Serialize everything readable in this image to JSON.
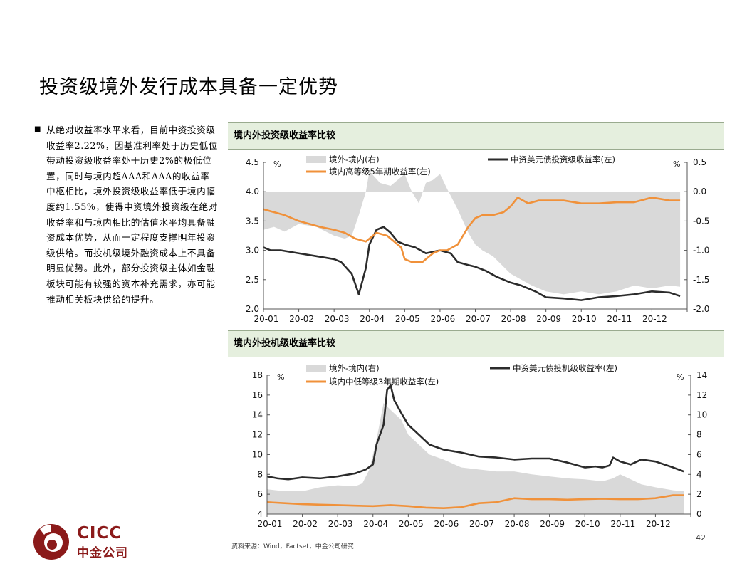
{
  "page": {
    "title": "投资级境外发行成本具备一定优势",
    "bullet": "从绝对收益率水平来看，目前中资投资级收益率2.22%，因基准利率处于历史低位带动投资级收益率处于历史2%的极低位置，同时与境内超AAA和AAA的收益率中枢相比，境外投资级收益率低于境内幅度约1.55%，使得中资境外投资级在绝对收益率和与境内相比的估值水平均具备融资成本优势，从而一定程度支撑明年投资级供给。而投机级境外融资成本上不具备明显优势。此外，部分投资级主体如金融板块可能有较强的资本补充需求，亦可能推动相关板块供给的提升。",
    "source": "资料来源：Wind，Factset，中金公司研究",
    "page_number": "42",
    "logo_en": "CICC",
    "logo_cn": "中金公司"
  },
  "colors": {
    "black": "#2b2b2b",
    "orange": "#f0913a",
    "gray_fill": "#d9d9d9",
    "brand": "#8b1a1a",
    "header_bg": "#e5efde"
  },
  "chart_data": [
    {
      "type": "line",
      "title": "境内外投资级收益率比较",
      "x_ticks": [
        "20-01",
        "20-02",
        "20-03",
        "20-04",
        "20-05",
        "20-06",
        "20-07",
        "20-08",
        "20-09",
        "20-10",
        "20-11",
        "20-12"
      ],
      "left_unit": "%",
      "right_unit": "%",
      "ylim_left": [
        2.0,
        4.5
      ],
      "ylim_right": [
        -2.0,
        0.5
      ],
      "yticks_left": [
        "2.0",
        "2.5",
        "3.0",
        "3.5",
        "4.0",
        "4.5"
      ],
      "yticks_right": [
        "-2.0",
        "-1.5",
        "-1.0",
        "-0.5",
        "0.0",
        "0.5"
      ],
      "legend_position": "top",
      "series": [
        {
          "name": "境外-境内(右)",
          "kind": "area",
          "axis": "right",
          "color": "#d9d9d9",
          "x": [
            0,
            0.3,
            0.6,
            1,
            1.5,
            2,
            2.3,
            2.5,
            2.7,
            2.9,
            3.0,
            3.3,
            3.6,
            3.8,
            4.0,
            4.2,
            4.4,
            4.6,
            4.8,
            5.0,
            5.2,
            5.5,
            5.8,
            6.0,
            6.2,
            6.5,
            7.0,
            7.3,
            7.6,
            8.0,
            8.5,
            9.0,
            9.5,
            10,
            10.5,
            11,
            11.5,
            11.8
          ],
          "values": [
            -0.65,
            -0.6,
            -0.68,
            -0.55,
            -0.6,
            -0.75,
            -0.8,
            -0.75,
            -0.4,
            0.0,
            0.35,
            0.15,
            0.1,
            0.2,
            0.3,
            0.0,
            -0.2,
            0.15,
            0.2,
            0.3,
            0.05,
            -0.3,
            -0.7,
            -0.9,
            -1.0,
            -1.1,
            -1.4,
            -1.5,
            -1.6,
            -1.7,
            -1.75,
            -1.7,
            -1.75,
            -1.7,
            -1.6,
            -1.65,
            -1.6,
            -1.62
          ]
        },
        {
          "name": "中资美元债投资级收益率(左)",
          "kind": "line",
          "axis": "left",
          "color": "#2b2b2b",
          "x": [
            0,
            0.2,
            0.5,
            1,
            1.5,
            2,
            2.2,
            2.5,
            2.7,
            2.9,
            3.0,
            3.2,
            3.4,
            3.6,
            3.8,
            4.0,
            4.3,
            4.6,
            5.0,
            5.3,
            5.5,
            5.8,
            6.0,
            6.3,
            6.6,
            7.0,
            7.3,
            7.7,
            8.0,
            8.5,
            9.0,
            9.5,
            10.0,
            10.5,
            11.0,
            11.5,
            11.8
          ],
          "values": [
            3.05,
            3.0,
            3.0,
            2.95,
            2.9,
            2.85,
            2.8,
            2.6,
            2.25,
            2.7,
            3.1,
            3.35,
            3.4,
            3.3,
            3.15,
            3.1,
            3.05,
            2.95,
            3.0,
            2.95,
            2.8,
            2.75,
            2.72,
            2.65,
            2.55,
            2.45,
            2.4,
            2.3,
            2.2,
            2.18,
            2.15,
            2.2,
            2.22,
            2.25,
            2.3,
            2.28,
            2.22
          ]
        },
        {
          "name": "境内高等级5年期收益率(左)",
          "kind": "line",
          "axis": "left",
          "color": "#f0913a",
          "x": [
            0,
            0.3,
            0.6,
            1,
            1.3,
            1.6,
            2.0,
            2.3,
            2.6,
            2.9,
            3.2,
            3.5,
            3.7,
            3.9,
            4.0,
            4.2,
            4.5,
            4.8,
            5.0,
            5.2,
            5.5,
            5.8,
            6.0,
            6.2,
            6.5,
            6.8,
            7.0,
            7.2,
            7.5,
            7.8,
            8.0,
            8.5,
            9.0,
            9.5,
            10.0,
            10.5,
            11.0,
            11.5,
            11.8
          ],
          "values": [
            3.7,
            3.65,
            3.6,
            3.5,
            3.45,
            3.4,
            3.35,
            3.3,
            3.2,
            3.15,
            3.3,
            3.25,
            3.15,
            3.05,
            2.85,
            2.8,
            2.8,
            2.95,
            3.0,
            3.0,
            3.1,
            3.4,
            3.55,
            3.6,
            3.6,
            3.65,
            3.75,
            3.9,
            3.8,
            3.85,
            3.85,
            3.85,
            3.8,
            3.8,
            3.82,
            3.82,
            3.9,
            3.85,
            3.85
          ]
        }
      ]
    },
    {
      "type": "line",
      "title": "境内外投机级收益率比较",
      "x_ticks": [
        "20-01",
        "20-02",
        "20-03",
        "20-04",
        "20-05",
        "20-06",
        "20-07",
        "20-08",
        "20-09",
        "20-10",
        "20-11",
        "20-12"
      ],
      "left_unit": "%",
      "right_unit": "%",
      "ylim_left": [
        4,
        18
      ],
      "ylim_right": [
        0,
        14
      ],
      "yticks_left": [
        "4",
        "6",
        "8",
        "10",
        "12",
        "14",
        "16",
        "18"
      ],
      "yticks_right": [
        "0",
        "2",
        "4",
        "6",
        "8",
        "10",
        "12",
        "14"
      ],
      "legend_position": "top",
      "series": [
        {
          "name": "境外-境内(右)",
          "kind": "area",
          "axis": "right",
          "color": "#d9d9d9",
          "x": [
            0,
            0.5,
            1,
            1.5,
            2,
            2.5,
            2.7,
            2.9,
            3.0,
            3.1,
            3.3,
            3.5,
            3.8,
            4.0,
            4.3,
            4.6,
            5.0,
            5.5,
            6.0,
            6.5,
            7.0,
            7.5,
            8.0,
            8.5,
            9.0,
            9.5,
            9.8,
            10.0,
            10.3,
            10.6,
            11.0,
            11.5,
            11.8
          ],
          "values": [
            2.5,
            2.3,
            2.3,
            2.7,
            2.9,
            2.8,
            3.1,
            4.5,
            6.0,
            7.5,
            11.2,
            10.5,
            9.5,
            8.0,
            7.0,
            6.0,
            5.5,
            4.7,
            4.5,
            4.3,
            4.3,
            4.0,
            3.8,
            3.6,
            3.5,
            3.3,
            3.6,
            4.0,
            3.5,
            3.0,
            2.7,
            2.4,
            2.3
          ]
        },
        {
          "name": "中资美元债投机级收益率(左)",
          "kind": "line",
          "axis": "left",
          "color": "#2b2b2b",
          "x": [
            0,
            0.3,
            0.6,
            1,
            1.5,
            2,
            2.5,
            2.8,
            3.0,
            3.1,
            3.3,
            3.4,
            3.5,
            3.6,
            3.8,
            4.0,
            4.3,
            4.6,
            5.0,
            5.5,
            6.0,
            6.5,
            7.0,
            7.5,
            8.0,
            8.5,
            9.0,
            9.3,
            9.5,
            9.7,
            9.8,
            10.0,
            10.3,
            10.6,
            11.0,
            11.5,
            11.8
          ],
          "values": [
            7.8,
            7.6,
            7.5,
            7.7,
            7.6,
            7.8,
            8.1,
            8.5,
            9.0,
            11.0,
            13.0,
            16.5,
            17.0,
            15.5,
            14.2,
            13.0,
            12.0,
            11.0,
            10.5,
            10.2,
            9.8,
            9.7,
            9.5,
            9.6,
            9.6,
            9.2,
            8.7,
            8.8,
            8.7,
            8.9,
            9.7,
            9.3,
            9.0,
            9.5,
            9.3,
            8.7,
            8.3
          ]
        },
        {
          "name": "境内中低等级3年期收益率(左)",
          "kind": "line",
          "axis": "left",
          "color": "#f0913a",
          "x": [
            0,
            0.5,
            1,
            1.5,
            2,
            2.5,
            3,
            3.5,
            4,
            4.5,
            5,
            5.5,
            6,
            6.5,
            7,
            7.5,
            8,
            8.5,
            9,
            9.5,
            10,
            10.5,
            11,
            11.5,
            11.8
          ],
          "values": [
            5.2,
            5.1,
            5.0,
            4.95,
            4.9,
            4.85,
            4.8,
            4.9,
            4.8,
            4.65,
            4.6,
            4.7,
            5.1,
            5.2,
            5.6,
            5.5,
            5.5,
            5.45,
            5.5,
            5.55,
            5.5,
            5.5,
            5.6,
            5.9,
            5.9
          ]
        }
      ]
    }
  ]
}
